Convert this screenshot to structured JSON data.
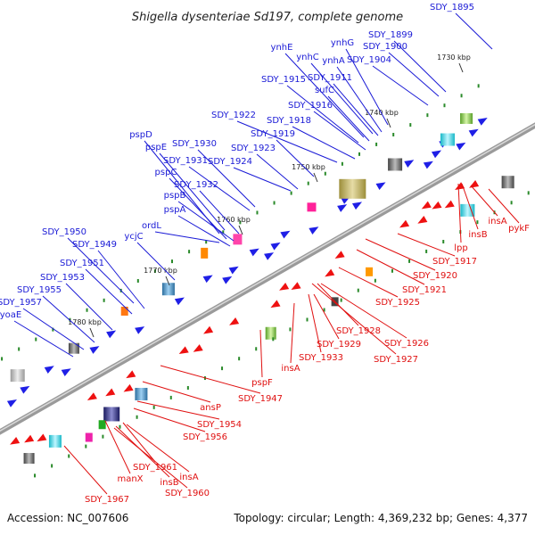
{
  "title": "Shigella dysenteriae Sd197, complete genome",
  "footer": {
    "accession": "Accession: NC_007606",
    "summary": "Topology: circular; Length: 4,369,232 bp; Genes: 4,377"
  },
  "colors": {
    "forward_label": "#1a1ad6",
    "reverse_label": "#e01010",
    "backbone": "#888888",
    "forward_arrow": "#1f1fe6",
    "reverse_arrow": "#ee1111"
  },
  "ticks": [
    "1730 kbp",
    "1740 kbp",
    "1750 kbp",
    "1760 kbp",
    "1770 kbp",
    "1780 kbp"
  ],
  "forward_labels": [
    "SDY_1895",
    "SDY_1899",
    "SDY_1900",
    "SDY_1904",
    "ynhG",
    "ynhA",
    "ynhE",
    "ynhC",
    "SDY_1911",
    "SDY_1915",
    "sufC",
    "SDY_1916",
    "SDY_1918",
    "SDY_1922",
    "SDY_1919",
    "SDY_1923",
    "pspD",
    "SDY_1930",
    "pspE",
    "SDY_1931",
    "SDY_1924",
    "pspC",
    "pspB",
    "SDY_1932",
    "pspA",
    "ordL",
    "SDY_1950",
    "SDY_1949",
    "ycjC",
    "SDY_1951",
    "SDY_1953",
    "SDY_1955",
    "SDY_1957",
    "yoaE"
  ],
  "reverse_labels": [
    "pykF",
    "insA",
    "insB",
    "lpp",
    "SDY_1917",
    "SDY_1920",
    "SDY_1921",
    "SDY_1925",
    "SDY_1926",
    "SDY_1927",
    "SDY_1928",
    "SDY_1929",
    "SDY_1933",
    "insA",
    "pspF",
    "SDY_1947",
    "ansP",
    "SDY_1954",
    "SDY_1956",
    "manX",
    "SDY_1961",
    "insA",
    "insB",
    "SDY_1960",
    "SDY_1967"
  ]
}
